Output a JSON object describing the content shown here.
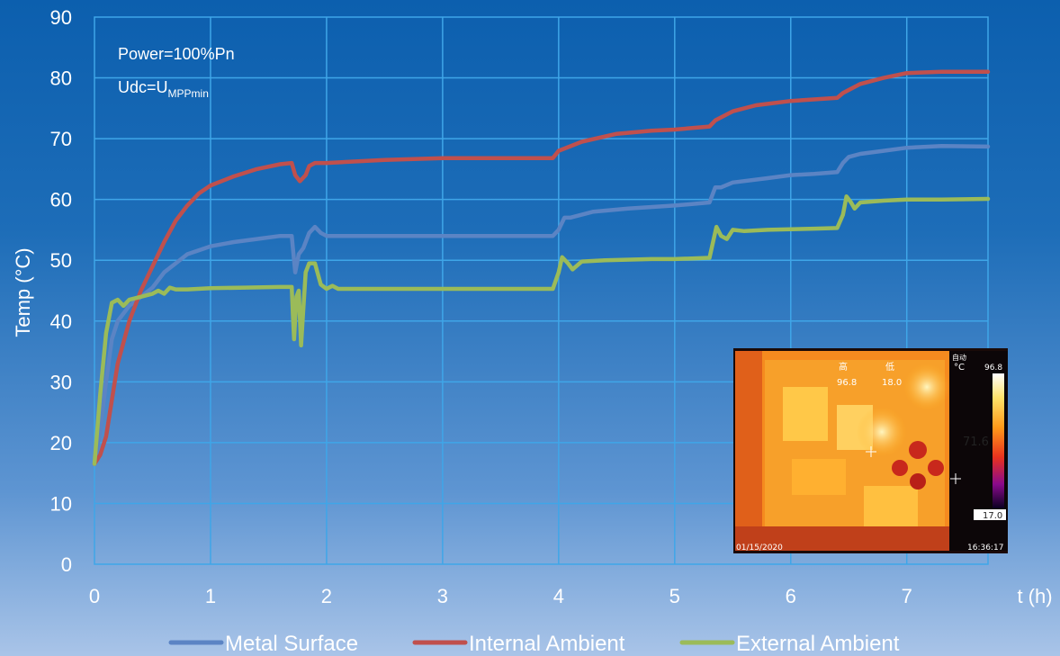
{
  "chart_data": {
    "type": "line",
    "title": "",
    "xlabel": "t (h)",
    "ylabel": "Temp (°C)",
    "xlim": [
      0,
      7.7
    ],
    "ylim": [
      0,
      90
    ],
    "xticks": [
      0,
      1,
      2,
      3,
      4,
      5,
      6,
      7
    ],
    "yticks": [
      0,
      10,
      20,
      30,
      40,
      50,
      60,
      70,
      80,
      90
    ],
    "grid": true,
    "legend": "bottom",
    "annotations": {
      "power": "Power=100%Pn",
      "udc_prefix": "Udc=U",
      "udc_sub": "MPPmin"
    },
    "series": [
      {
        "name": "Metal Surface",
        "color": "#5b84c4",
        "points": [
          [
            0,
            16.5
          ],
          [
            0.05,
            22
          ],
          [
            0.1,
            30
          ],
          [
            0.15,
            37
          ],
          [
            0.2,
            40
          ],
          [
            0.3,
            42.5
          ],
          [
            0.4,
            44
          ],
          [
            0.5,
            45.5
          ],
          [
            0.6,
            48
          ],
          [
            0.7,
            49.5
          ],
          [
            0.8,
            51
          ],
          [
            1.0,
            52.3
          ],
          [
            1.2,
            53
          ],
          [
            1.4,
            53.5
          ],
          [
            1.6,
            54
          ],
          [
            1.7,
            54
          ],
          [
            1.73,
            48
          ],
          [
            1.76,
            51
          ],
          [
            1.8,
            52
          ],
          [
            1.85,
            54.5
          ],
          [
            1.9,
            55.5
          ],
          [
            1.95,
            54.5
          ],
          [
            2.0,
            54
          ],
          [
            2.5,
            54
          ],
          [
            3.0,
            54
          ],
          [
            3.5,
            54
          ],
          [
            3.95,
            54
          ],
          [
            4.0,
            55
          ],
          [
            4.05,
            57
          ],
          [
            4.1,
            57
          ],
          [
            4.3,
            58
          ],
          [
            4.6,
            58.5
          ],
          [
            5.0,
            59
          ],
          [
            5.3,
            59.5
          ],
          [
            5.35,
            62
          ],
          [
            5.4,
            62
          ],
          [
            5.5,
            62.8
          ],
          [
            5.8,
            63.5
          ],
          [
            6.0,
            64
          ],
          [
            6.2,
            64.2
          ],
          [
            6.4,
            64.5
          ],
          [
            6.45,
            66
          ],
          [
            6.5,
            67
          ],
          [
            6.6,
            67.5
          ],
          [
            6.8,
            68
          ],
          [
            7.0,
            68.5
          ],
          [
            7.3,
            68.8
          ],
          [
            7.7,
            68.7
          ]
        ]
      },
      {
        "name": "Internal Ambient",
        "color": "#c0504d",
        "points": [
          [
            0,
            16.5
          ],
          [
            0.05,
            18
          ],
          [
            0.1,
            21
          ],
          [
            0.15,
            27
          ],
          [
            0.2,
            33
          ],
          [
            0.3,
            40
          ],
          [
            0.4,
            45
          ],
          [
            0.5,
            49
          ],
          [
            0.6,
            53
          ],
          [
            0.7,
            56.5
          ],
          [
            0.8,
            59
          ],
          [
            0.9,
            61
          ],
          [
            1.0,
            62.3
          ],
          [
            1.2,
            63.8
          ],
          [
            1.4,
            65
          ],
          [
            1.6,
            65.8
          ],
          [
            1.7,
            66
          ],
          [
            1.73,
            64
          ],
          [
            1.77,
            63
          ],
          [
            1.82,
            64
          ],
          [
            1.85,
            65.5
          ],
          [
            1.9,
            66
          ],
          [
            2.0,
            66
          ],
          [
            2.5,
            66.5
          ],
          [
            3.0,
            66.8
          ],
          [
            3.5,
            66.8
          ],
          [
            3.95,
            66.8
          ],
          [
            4.0,
            68
          ],
          [
            4.2,
            69.5
          ],
          [
            4.5,
            70.8
          ],
          [
            4.8,
            71.3
          ],
          [
            5.0,
            71.5
          ],
          [
            5.3,
            72
          ],
          [
            5.35,
            73
          ],
          [
            5.5,
            74.5
          ],
          [
            5.7,
            75.5
          ],
          [
            6.0,
            76.2
          ],
          [
            6.4,
            76.7
          ],
          [
            6.45,
            77.5
          ],
          [
            6.6,
            79
          ],
          [
            6.8,
            80
          ],
          [
            7.0,
            80.8
          ],
          [
            7.3,
            81
          ],
          [
            7.7,
            81
          ]
        ]
      },
      {
        "name": "External Ambient",
        "color": "#9bbb59",
        "points": [
          [
            0,
            16.5
          ],
          [
            0.05,
            28
          ],
          [
            0.1,
            38
          ],
          [
            0.15,
            43
          ],
          [
            0.2,
            43.5
          ],
          [
            0.25,
            42.5
          ],
          [
            0.3,
            43.5
          ],
          [
            0.4,
            44
          ],
          [
            0.5,
            44.5
          ],
          [
            0.55,
            45
          ],
          [
            0.6,
            44.5
          ],
          [
            0.65,
            45.5
          ],
          [
            0.7,
            45.2
          ],
          [
            0.8,
            45.2
          ],
          [
            1.0,
            45.4
          ],
          [
            1.3,
            45.5
          ],
          [
            1.6,
            45.6
          ],
          [
            1.7,
            45.6
          ],
          [
            1.71,
            41
          ],
          [
            1.72,
            37
          ],
          [
            1.74,
            44
          ],
          [
            1.76,
            45
          ],
          [
            1.78,
            36
          ],
          [
            1.8,
            42
          ],
          [
            1.82,
            48
          ],
          [
            1.85,
            49.5
          ],
          [
            1.9,
            49.5
          ],
          [
            1.95,
            46
          ],
          [
            2.0,
            45.3
          ],
          [
            2.05,
            45.8
          ],
          [
            2.1,
            45.3
          ],
          [
            2.5,
            45.3
          ],
          [
            3.0,
            45.3
          ],
          [
            3.5,
            45.3
          ],
          [
            3.95,
            45.3
          ],
          [
            4.0,
            48
          ],
          [
            4.03,
            50.5
          ],
          [
            4.08,
            49.5
          ],
          [
            4.12,
            48.5
          ],
          [
            4.2,
            49.8
          ],
          [
            4.4,
            50
          ],
          [
            4.8,
            50.2
          ],
          [
            5.0,
            50.2
          ],
          [
            5.3,
            50.4
          ],
          [
            5.33,
            53
          ],
          [
            5.36,
            55.5
          ],
          [
            5.4,
            54
          ],
          [
            5.45,
            53.5
          ],
          [
            5.5,
            55
          ],
          [
            5.6,
            54.8
          ],
          [
            5.8,
            55
          ],
          [
            6.0,
            55.1
          ],
          [
            6.2,
            55.2
          ],
          [
            6.4,
            55.3
          ],
          [
            6.45,
            57.5
          ],
          [
            6.48,
            60.5
          ],
          [
            6.52,
            59.5
          ],
          [
            6.55,
            58.5
          ],
          [
            6.6,
            59.5
          ],
          [
            6.8,
            59.8
          ],
          [
            7.0,
            60
          ],
          [
            7.3,
            60
          ],
          [
            7.7,
            60.1
          ]
        ]
      }
    ]
  },
  "thermal_inset": {
    "high_label": "高",
    "low_label": "低",
    "high_value": "96.8",
    "low_value": "18.0",
    "mode_label": "自动",
    "unit_label": "°C",
    "scale_top": "96.8",
    "cursor_value": "71.6",
    "scale_bottom": "17.0",
    "date": "01/15/2020",
    "time": "16:36:17"
  }
}
